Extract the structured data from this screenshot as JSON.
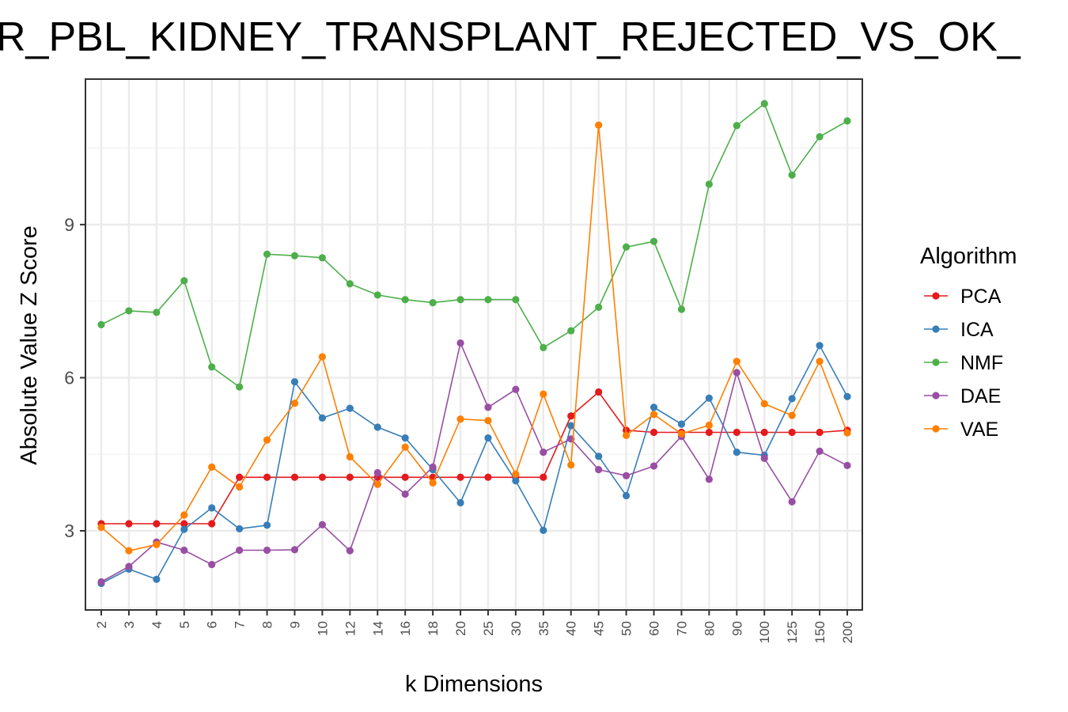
{
  "chart_data": {
    "type": "line",
    "title": "R_PBL_KIDNEY_TRANSPLANT_REJECTED_VS_OK_",
    "xlabel": "k Dimensions",
    "ylabel": "Absolute Value Z Score",
    "categories": [
      "2",
      "3",
      "4",
      "5",
      "6",
      "7",
      "8",
      "9",
      "10",
      "12",
      "14",
      "16",
      "18",
      "20",
      "25",
      "30",
      "35",
      "40",
      "45",
      "50",
      "60",
      "70",
      "80",
      "90",
      "100",
      "125",
      "150",
      "200"
    ],
    "ylim": [
      1.45,
      11.85
    ],
    "yticks": [
      3,
      6,
      9
    ],
    "ytick_labels": [
      "3",
      "6",
      "9"
    ],
    "grid": true,
    "legend_title": "Algorithm",
    "legend_position": "right",
    "series": [
      {
        "name": "PCA",
        "color": "#E41A1C",
        "values": [
          3.14,
          3.14,
          3.14,
          3.14,
          3.14,
          4.05,
          4.05,
          4.05,
          4.05,
          4.05,
          4.05,
          4.05,
          4.05,
          4.05,
          4.05,
          4.05,
          4.05,
          5.25,
          5.72,
          4.97,
          4.93,
          4.93,
          4.93,
          4.93,
          4.93,
          4.93,
          4.93,
          4.97
        ]
      },
      {
        "name": "ICA",
        "color": "#377EB8",
        "values": [
          1.97,
          2.25,
          2.05,
          3.03,
          3.45,
          3.04,
          3.11,
          5.92,
          5.21,
          5.4,
          5.03,
          4.82,
          4.2,
          3.55,
          4.82,
          3.98,
          3.01,
          5.06,
          4.46,
          3.69,
          5.42,
          5.09,
          5.6,
          4.54,
          4.48,
          5.59,
          6.63,
          5.63
        ]
      },
      {
        "name": "NMF",
        "color": "#4DAF4A",
        "values": [
          7.04,
          7.31,
          7.28,
          7.9,
          6.21,
          5.82,
          8.42,
          8.39,
          8.35,
          7.84,
          7.62,
          7.53,
          7.47,
          7.53,
          7.53,
          7.53,
          6.59,
          6.92,
          7.38,
          8.56,
          8.67,
          7.34,
          9.79,
          10.94,
          11.37,
          9.97,
          10.72,
          11.03
        ]
      },
      {
        "name": "DAE",
        "color": "#984EA3",
        "values": [
          2.0,
          2.3,
          2.78,
          2.62,
          2.34,
          2.62,
          2.62,
          2.63,
          3.12,
          2.61,
          4.14,
          3.72,
          4.25,
          6.68,
          5.42,
          5.77,
          4.54,
          4.8,
          4.2,
          4.08,
          4.27,
          4.85,
          4.01,
          6.1,
          4.42,
          3.57,
          4.56,
          4.28
        ]
      },
      {
        "name": "VAE",
        "color": "#FF7F00",
        "values": [
          3.07,
          2.61,
          2.73,
          3.31,
          4.25,
          3.86,
          4.78,
          5.5,
          6.41,
          4.45,
          3.91,
          4.64,
          3.94,
          5.19,
          5.16,
          4.11,
          5.68,
          4.29,
          10.95,
          4.87,
          5.28,
          4.9,
          5.07,
          6.32,
          5.49,
          5.26,
          6.32,
          4.92
        ]
      }
    ]
  }
}
